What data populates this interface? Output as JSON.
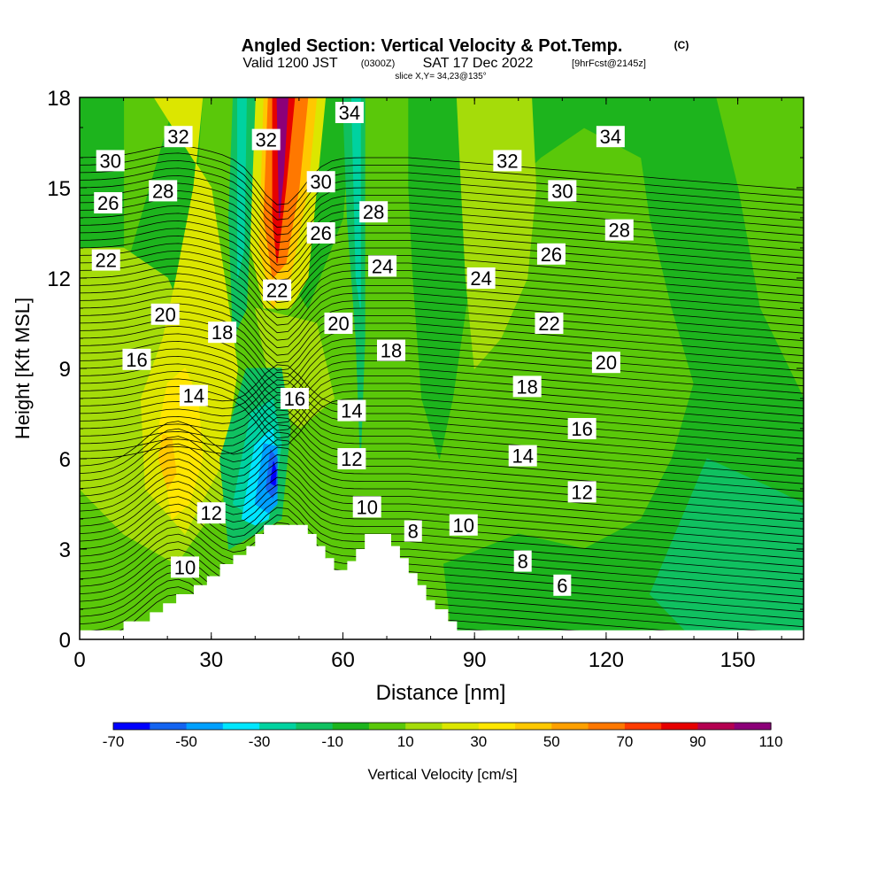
{
  "chart_data": {
    "type": "heatmap",
    "title": "Angled Section: Vertical Velocity & Pot.Temp.",
    "title_mark": "(C)",
    "subtitle": {
      "valid": "Valid 1200 JST",
      "utc": "(0300Z)",
      "date": "SAT 17 Dec 2022",
      "forecast": "[9hrFcst@2145z]"
    },
    "slice": "slice X,Y= 34,23@135°",
    "xlabel": "Distance [nm]",
    "ylabel": "Height [Kft MSL]",
    "xlim": [
      0,
      165
    ],
    "ylim": [
      0,
      18
    ],
    "x_ticks": [
      "0",
      "30",
      "60",
      "90",
      "120",
      "150"
    ],
    "y_ticks": [
      "0",
      "3",
      "6",
      "9",
      "12",
      "15",
      "18"
    ],
    "colorbar": {
      "label": "Vertical Velocity [cm/s]",
      "tick_labels": [
        "-70",
        "-50",
        "-30",
        "-10",
        "10",
        "30",
        "50",
        "70",
        "90",
        "110"
      ],
      "levels": [
        -70,
        -60,
        -50,
        -40,
        -30,
        -20,
        -10,
        0,
        10,
        20,
        30,
        40,
        50,
        60,
        70,
        80,
        90,
        100,
        110
      ],
      "colors": [
        "#0000ff",
        "#1464f0",
        "#00a0ff",
        "#00e6ff",
        "#00d2a0",
        "#10c060",
        "#1db41d",
        "#5ac80a",
        "#a5dc0a",
        "#dce600",
        "#ffe600",
        "#ffc800",
        "#ffa000",
        "#ff7800",
        "#ff3c00",
        "#e60000",
        "#b40050",
        "#8c0078"
      ]
    },
    "contour_labels": [
      {
        "x": 7,
        "y": 15.9,
        "v": "30"
      },
      {
        "x": 22.5,
        "y": 16.7,
        "v": "32"
      },
      {
        "x": 42.5,
        "y": 16.6,
        "v": "32"
      },
      {
        "x": 61.5,
        "y": 17.5,
        "v": "34"
      },
      {
        "x": 121,
        "y": 16.7,
        "v": "34"
      },
      {
        "x": 6.5,
        "y": 14.5,
        "v": "26"
      },
      {
        "x": 19,
        "y": 14.9,
        "v": "28"
      },
      {
        "x": 55,
        "y": 15.2,
        "v": "30"
      },
      {
        "x": 97.5,
        "y": 15.9,
        "v": "32"
      },
      {
        "x": 110,
        "y": 14.9,
        "v": "30"
      },
      {
        "x": 67,
        "y": 14.2,
        "v": "28"
      },
      {
        "x": 55,
        "y": 13.5,
        "v": "26"
      },
      {
        "x": 123,
        "y": 13.6,
        "v": "28"
      },
      {
        "x": 6,
        "y": 12.6,
        "v": "22"
      },
      {
        "x": 69,
        "y": 12.4,
        "v": "24"
      },
      {
        "x": 91.5,
        "y": 12.0,
        "v": "24"
      },
      {
        "x": 107.5,
        "y": 12.8,
        "v": "26"
      },
      {
        "x": 45,
        "y": 11.6,
        "v": "22"
      },
      {
        "x": 19.5,
        "y": 10.8,
        "v": "20"
      },
      {
        "x": 32.5,
        "y": 10.2,
        "v": "18"
      },
      {
        "x": 59,
        "y": 10.5,
        "v": "20"
      },
      {
        "x": 107,
        "y": 10.5,
        "v": "22"
      },
      {
        "x": 71,
        "y": 9.6,
        "v": "18"
      },
      {
        "x": 13,
        "y": 9.3,
        "v": "16"
      },
      {
        "x": 120,
        "y": 9.2,
        "v": "20"
      },
      {
        "x": 102,
        "y": 8.4,
        "v": "18"
      },
      {
        "x": 26,
        "y": 8.1,
        "v": "14"
      },
      {
        "x": 49,
        "y": 8.0,
        "v": "16"
      },
      {
        "x": 62,
        "y": 7.6,
        "v": "14"
      },
      {
        "x": 114.5,
        "y": 7.0,
        "v": "16"
      },
      {
        "x": 62,
        "y": 6.0,
        "v": "12"
      },
      {
        "x": 101,
        "y": 6.1,
        "v": "14"
      },
      {
        "x": 114.5,
        "y": 4.9,
        "v": "12"
      },
      {
        "x": 30,
        "y": 4.2,
        "v": "12"
      },
      {
        "x": 65.5,
        "y": 4.4,
        "v": "10"
      },
      {
        "x": 87.5,
        "y": 3.8,
        "v": "10"
      },
      {
        "x": 76,
        "y": 3.6,
        "v": "8"
      },
      {
        "x": 101,
        "y": 2.6,
        "v": "8"
      },
      {
        "x": 110,
        "y": 1.8,
        "v": "6"
      },
      {
        "x": 24,
        "y": 2.4,
        "v": "10"
      }
    ],
    "terrain": [
      [
        0,
        0.3
      ],
      [
        10,
        0.3
      ],
      [
        10,
        0.6
      ],
      [
        16,
        0.6
      ],
      [
        16,
        0.9
      ],
      [
        19,
        0.9
      ],
      [
        19,
        1.2
      ],
      [
        22,
        1.2
      ],
      [
        22,
        1.5
      ],
      [
        26,
        1.5
      ],
      [
        26,
        1.8
      ],
      [
        29,
        1.8
      ],
      [
        29,
        2.1
      ],
      [
        32,
        2.1
      ],
      [
        32,
        2.5
      ],
      [
        35,
        2.5
      ],
      [
        35,
        2.8
      ],
      [
        38,
        2.8
      ],
      [
        38,
        3.1
      ],
      [
        40,
        3.1
      ],
      [
        40,
        3.5
      ],
      [
        42,
        3.5
      ],
      [
        42,
        3.8
      ],
      [
        52,
        3.8
      ],
      [
        52,
        3.5
      ],
      [
        54,
        3.5
      ],
      [
        54,
        3.1
      ],
      [
        56,
        3.1
      ],
      [
        56,
        2.7
      ],
      [
        58,
        2.7
      ],
      [
        58,
        2.3
      ],
      [
        61,
        2.3
      ],
      [
        61,
        2.6
      ],
      [
        63,
        2.6
      ],
      [
        63,
        3.0
      ],
      [
        65,
        3.0
      ],
      [
        65,
        3.5
      ],
      [
        71,
        3.5
      ],
      [
        71,
        3.1
      ],
      [
        73,
        3.1
      ],
      [
        73,
        2.7
      ],
      [
        75,
        2.7
      ],
      [
        75,
        2.2
      ],
      [
        77,
        2.2
      ],
      [
        77,
        1.8
      ],
      [
        79,
        1.8
      ],
      [
        79,
        1.3
      ],
      [
        81,
        1.3
      ],
      [
        81,
        1.0
      ],
      [
        84,
        1.0
      ],
      [
        84,
        0.6
      ],
      [
        86,
        0.6
      ],
      [
        86,
        0.3
      ],
      [
        165,
        0.3
      ]
    ]
  }
}
